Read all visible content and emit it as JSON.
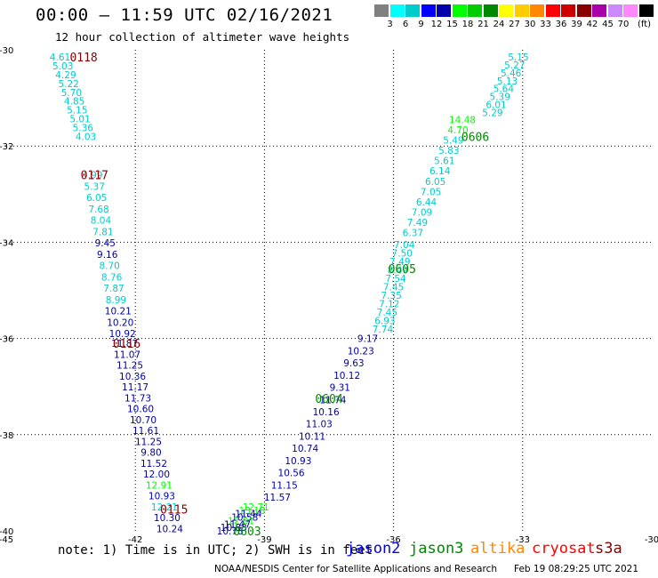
{
  "header": {
    "title": "00:00 — 11:59 UTC 02/16/2021",
    "subtitle": "12 hour collection of altimeter wave heights"
  },
  "color_scale": {
    "colors": [
      "#808080",
      "#00ffff",
      "#00cccc",
      "#0000ff",
      "#0000aa",
      "#00ff00",
      "#00cc00",
      "#008800",
      "#ffff00",
      "#ffcc00",
      "#ff8800",
      "#ff0000",
      "#cc0000",
      "#880000",
      "#aa00aa",
      "#cc88ff",
      "#ff88ff",
      "#000000"
    ],
    "labels": [
      "3",
      "6",
      "9",
      "12",
      "15",
      "18",
      "21",
      "24",
      "27",
      "30",
      "33",
      "36",
      "39",
      "42",
      "45",
      "70",
      "(ft)"
    ]
  },
  "chart_data": {
    "type": "scatter",
    "title": "00:00 — 11:59 UTC 02/16/2021",
    "subtitle": "12 hour collection of altimeter wave heights",
    "xlim": [
      -45,
      -30
    ],
    "ylim": [
      -40,
      -30
    ],
    "x_ticks": [
      "-45",
      "-42",
      "-39",
      "-36",
      "-33",
      "-30"
    ],
    "y_ticks": [
      "-30",
      "-32",
      "-34",
      "-36",
      "-38",
      "-40"
    ],
    "grid": true,
    "series": [
      {
        "name": "jason2",
        "color": "#0000ff"
      },
      {
        "name": "jason3",
        "color": "#008800"
      },
      {
        "name": "altika",
        "color": "#ff8800"
      },
      {
        "name": "cryosat",
        "color": "#ff0000"
      },
      {
        "name": "s3a",
        "color": "#880000"
      }
    ],
    "track_labels": [
      {
        "text": "0118",
        "x": -43.2,
        "y": -30.15,
        "color": "#880000"
      },
      {
        "text": "0117",
        "x": -42.95,
        "y": -32.6,
        "color": "#880000"
      },
      {
        "text": "0116",
        "x": -42.2,
        "y": -36.1,
        "color": "#880000"
      },
      {
        "text": "0115",
        "x": -41.1,
        "y": -39.55,
        "color": "#880000"
      },
      {
        "text": "0603",
        "x": -39.4,
        "y": -40.0,
        "color": "#008800"
      },
      {
        "text": "0604",
        "x": -37.5,
        "y": -37.25,
        "color": "#008800"
      },
      {
        "text": "0605",
        "x": -35.8,
        "y": -34.55,
        "color": "#008800"
      },
      {
        "text": "0606",
        "x": -34.1,
        "y": -31.8,
        "color": "#008800"
      }
    ],
    "tracks": [
      {
        "x0": -43.75,
        "y0": -30.15,
        "x1": -43.15,
        "y1": -31.8,
        "values": [
          "4.61",
          "5.03",
          "4.29",
          "5.22",
          "5.70",
          "4.85",
          "5.15",
          "5.01",
          "5.36",
          "4.03"
        ],
        "colors": [
          "#00cccc",
          "#00cccc",
          "#00cccc",
          "#00cccc",
          "#00cccc",
          "#00cccc",
          "#00cccc",
          "#00cccc",
          "#00cccc",
          "#00cccc"
        ]
      },
      {
        "x0": -43.0,
        "y0": -32.6,
        "x1": -42.3,
        "y1": -35.9,
        "values": [
          "4.99",
          "5.37",
          "6.05",
          "7.68",
          "8.04",
          "7.81",
          "9.45",
          "9.16",
          "8.70",
          "8.76",
          "7.87",
          "8.99",
          "10.21",
          "10.20",
          "10.92"
        ],
        "colors": [
          "#00cccc",
          "#00cccc",
          "#00cccc",
          "#00cccc",
          "#00cccc",
          "#00cccc",
          "#0000aa",
          "#0000aa",
          "#00cccc",
          "#00cccc",
          "#00cccc",
          "#00cccc",
          "#0000aa",
          "#0000aa",
          "#0000aa"
        ]
      },
      {
        "x0": -42.25,
        "y0": -36.1,
        "x1": -41.2,
        "y1": -39.95,
        "values": [
          "11.87",
          "11.07",
          "11.25",
          "10.36",
          "11.17",
          "11.73",
          "10.60",
          "10.70",
          "11.61",
          "11.25",
          "9.80",
          "11.52",
          "12.00",
          "12.91",
          "10.93",
          "12.21",
          "10.30",
          "10.24"
        ],
        "colors": [
          "#0000aa",
          "#0000aa",
          "#0000aa",
          "#0000aa",
          "#0000aa",
          "#0000aa",
          "#0000aa",
          "#0000aa",
          "#0000aa",
          "#0000aa",
          "#0000aa",
          "#0000aa",
          "#0000aa",
          "#00ff00",
          "#0000aa",
          "#00cccc",
          "#0000aa",
          "#0000aa"
        ]
      },
      {
        "x0": -39.2,
        "y0": -39.5,
        "x1": -39.8,
        "y1": -40.0,
        "values": [
          "12.71",
          "13.18",
          "11.44",
          "10.58",
          "12.01",
          "11.47",
          "10.83",
          "10.78"
        ],
        "colors": [
          "#00ff00",
          "#00ff00",
          "#0000aa",
          "#0000aa",
          "#00ff00",
          "#0000aa",
          "#0000aa",
          "#0000aa"
        ]
      },
      {
        "x0": -36.6,
        "y0": -36.0,
        "x1": -38.7,
        "y1": -39.3,
        "values": [
          "9.17",
          "10.23",
          "9.63",
          "10.12",
          "9.31",
          "11.74",
          "10.16",
          "11.03",
          "10.11",
          "10.74",
          "10.93",
          "10.56",
          "11.15",
          "11.57"
        ],
        "colors": [
          "#0000aa",
          "#0000aa",
          "#0000aa",
          "#0000aa",
          "#0000aa",
          "#0000aa",
          "#0000aa",
          "#0000aa",
          "#0000aa",
          "#0000aa",
          "#0000aa",
          "#0000aa",
          "#0000aa",
          "#0000aa"
        ]
      },
      {
        "x0": -35.75,
        "y0": -34.05,
        "x1": -36.25,
        "y1": -35.8,
        "values": [
          "7.04",
          "7.50",
          "7.49",
          "8.49",
          "7.54",
          "7.45",
          "7.35",
          "7.12",
          "7.45",
          "6.93",
          "7.74"
        ],
        "colors": [
          "#00cccc",
          "#00cccc",
          "#00cccc",
          "#00cccc",
          "#00cccc",
          "#00cccc",
          "#00cccc",
          "#00cccc",
          "#00cccc",
          "#00cccc",
          "#00cccc"
        ]
      },
      {
        "x0": -34.4,
        "y0": -31.45,
        "x1": -35.55,
        "y1": -33.8,
        "values": [
          "14.48",
          "4.70",
          "5.49",
          "5.83",
          "5.61",
          "6.14",
          "6.05",
          "7.05",
          "6.44",
          "7.09",
          "7.49",
          "6.37"
        ],
        "colors": [
          "#00ff00",
          "#00ff00",
          "#00cccc",
          "#00cccc",
          "#00cccc",
          "#00cccc",
          "#00cccc",
          "#00cccc",
          "#00cccc",
          "#00cccc",
          "#00cccc",
          "#00cccc"
        ]
      },
      {
        "x0": -33.1,
        "y0": -30.15,
        "x1": -33.7,
        "y1": -31.3,
        "values": [
          "5.15",
          "5.27",
          "5.46",
          "5.13",
          "5.64",
          "5.39",
          "6.01",
          "5.29"
        ],
        "colors": [
          "#00cccc",
          "#00cccc",
          "#00cccc",
          "#00cccc",
          "#00cccc",
          "#00cccc",
          "#00cccc",
          "#00cccc"
        ]
      }
    ]
  },
  "note": "note: 1) Time is in UTC; 2) SWH is in feet",
  "legend_sats": [
    {
      "name": "jason2",
      "color": "#0000ff"
    },
    {
      "name": "jason3",
      "color": "#008800"
    },
    {
      "name": "altika",
      "color": "#ff8800"
    },
    {
      "name": "cryosat",
      "color": "#ff0000"
    },
    {
      "name": "s3a",
      "color": "#880000"
    }
  ],
  "footer": {
    "center": "NOAA/NESDIS Center for Satellite Applications and Research",
    "timestamp": "Feb 19 08:29:25 UTC 2021"
  }
}
